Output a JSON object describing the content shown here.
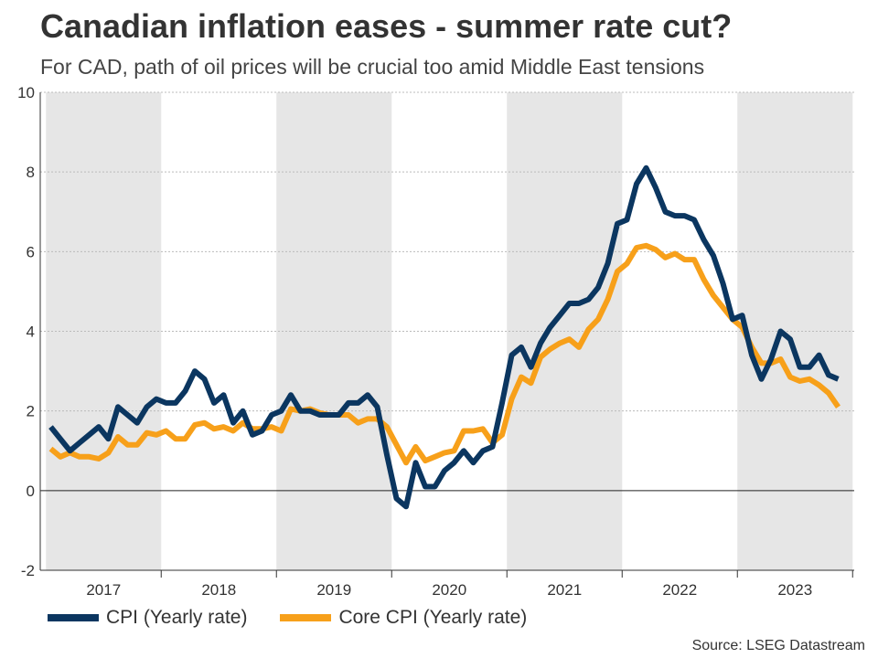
{
  "title": "Canadian inflation eases - summer rate cut?",
  "subtitle": "For CAD, path of oil prices will be crucial too amid Middle East tensions",
  "source": "Source: LSEG Datastream",
  "colors": {
    "cpi": "#0b3660",
    "core": "#f7a01a",
    "band": "#e6e6e6",
    "grid": "#bbbbbb"
  },
  "chart_data": {
    "type": "line",
    "title": "Canadian inflation eases - summer rate cut?",
    "xlabel": "",
    "ylabel": "",
    "ylim": [
      -2,
      10
    ],
    "yticks": [
      -2,
      0,
      2,
      4,
      6,
      8,
      10
    ],
    "x_start": "2017-01",
    "x_end": "2024-03",
    "year_labels": [
      "2017",
      "2018",
      "2019",
      "2020",
      "2021",
      "2022",
      "2023"
    ],
    "shaded_years": [
      "2017",
      "2019",
      "2021",
      "2023"
    ],
    "series": [
      {
        "name": "CPI (Yearly rate)",
        "color": "#0b3660",
        "values": [
          1.6,
          1.3,
          1.0,
          1.2,
          1.4,
          1.6,
          1.3,
          2.1,
          1.9,
          1.7,
          2.1,
          2.3,
          2.2,
          2.2,
          2.5,
          3.0,
          2.8,
          2.2,
          2.4,
          1.7,
          2.0,
          1.4,
          1.5,
          1.9,
          2.0,
          2.4,
          2.0,
          2.0,
          1.9,
          1.9,
          1.9,
          2.2,
          2.2,
          2.4,
          2.1,
          0.9,
          -0.2,
          -0.4,
          0.7,
          0.1,
          0.1,
          0.5,
          0.7,
          1.0,
          0.7,
          1.0,
          1.1,
          2.2,
          3.4,
          3.6,
          3.1,
          3.7,
          4.1,
          4.4,
          4.7,
          4.7,
          4.8,
          5.1,
          5.7,
          6.7,
          6.8,
          7.7,
          8.1,
          7.6,
          7.0,
          6.9,
          6.9,
          6.8,
          6.3,
          5.9,
          5.2,
          4.3,
          4.4,
          3.4,
          2.8,
          3.3,
          4.0,
          3.8,
          3.1,
          3.1,
          3.4,
          2.9,
          2.8
        ]
      },
      {
        "name": "Core CPI (Yearly rate)",
        "color": "#f7a01a",
        "values": [
          1.05,
          0.85,
          0.95,
          0.85,
          0.85,
          0.8,
          0.95,
          1.35,
          1.15,
          1.15,
          1.45,
          1.4,
          1.5,
          1.3,
          1.3,
          1.65,
          1.7,
          1.55,
          1.6,
          1.5,
          1.7,
          1.55,
          1.55,
          1.6,
          1.5,
          2.05,
          2.0,
          2.05,
          1.95,
          1.9,
          1.9,
          1.9,
          1.7,
          1.8,
          1.8,
          1.6,
          1.15,
          0.7,
          1.1,
          0.75,
          0.85,
          0.95,
          1.0,
          1.5,
          1.5,
          1.55,
          1.2,
          1.4,
          2.3,
          2.85,
          2.7,
          3.35,
          3.55,
          3.7,
          3.8,
          3.6,
          4.05,
          4.3,
          4.8,
          5.5,
          5.7,
          6.1,
          6.15,
          6.05,
          5.85,
          5.95,
          5.8,
          5.8,
          5.3,
          4.9,
          4.6,
          4.3,
          4.1,
          3.6,
          3.2,
          3.2,
          3.3,
          2.85,
          2.75,
          2.8,
          2.65,
          2.45,
          2.1
        ]
      }
    ]
  }
}
